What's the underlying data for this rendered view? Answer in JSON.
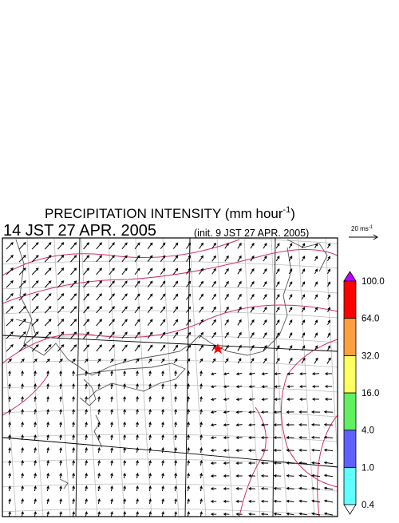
{
  "header": {
    "title": "PRECIPITATION INTENSITY (mm hour",
    "title_sup": "-1",
    "title_end": ")",
    "time": "14 JST 27 APR. 2005",
    "init": "(init. 9 JST 27 APR. 2005)"
  },
  "vector_legend": {
    "label": "20 ms",
    "sup": "-1"
  },
  "colorbar": {
    "labels": [
      "0.4",
      "1.0",
      "4.0",
      "16.0",
      "32.0",
      "64.0",
      "100.0"
    ],
    "colors": [
      "#60ffff",
      "#6060ff",
      "#60f060",
      "#ffff60",
      "#ffa040",
      "#ff0000"
    ],
    "under_color": "#ffffff",
    "over_color": "#c000ff"
  }
}
